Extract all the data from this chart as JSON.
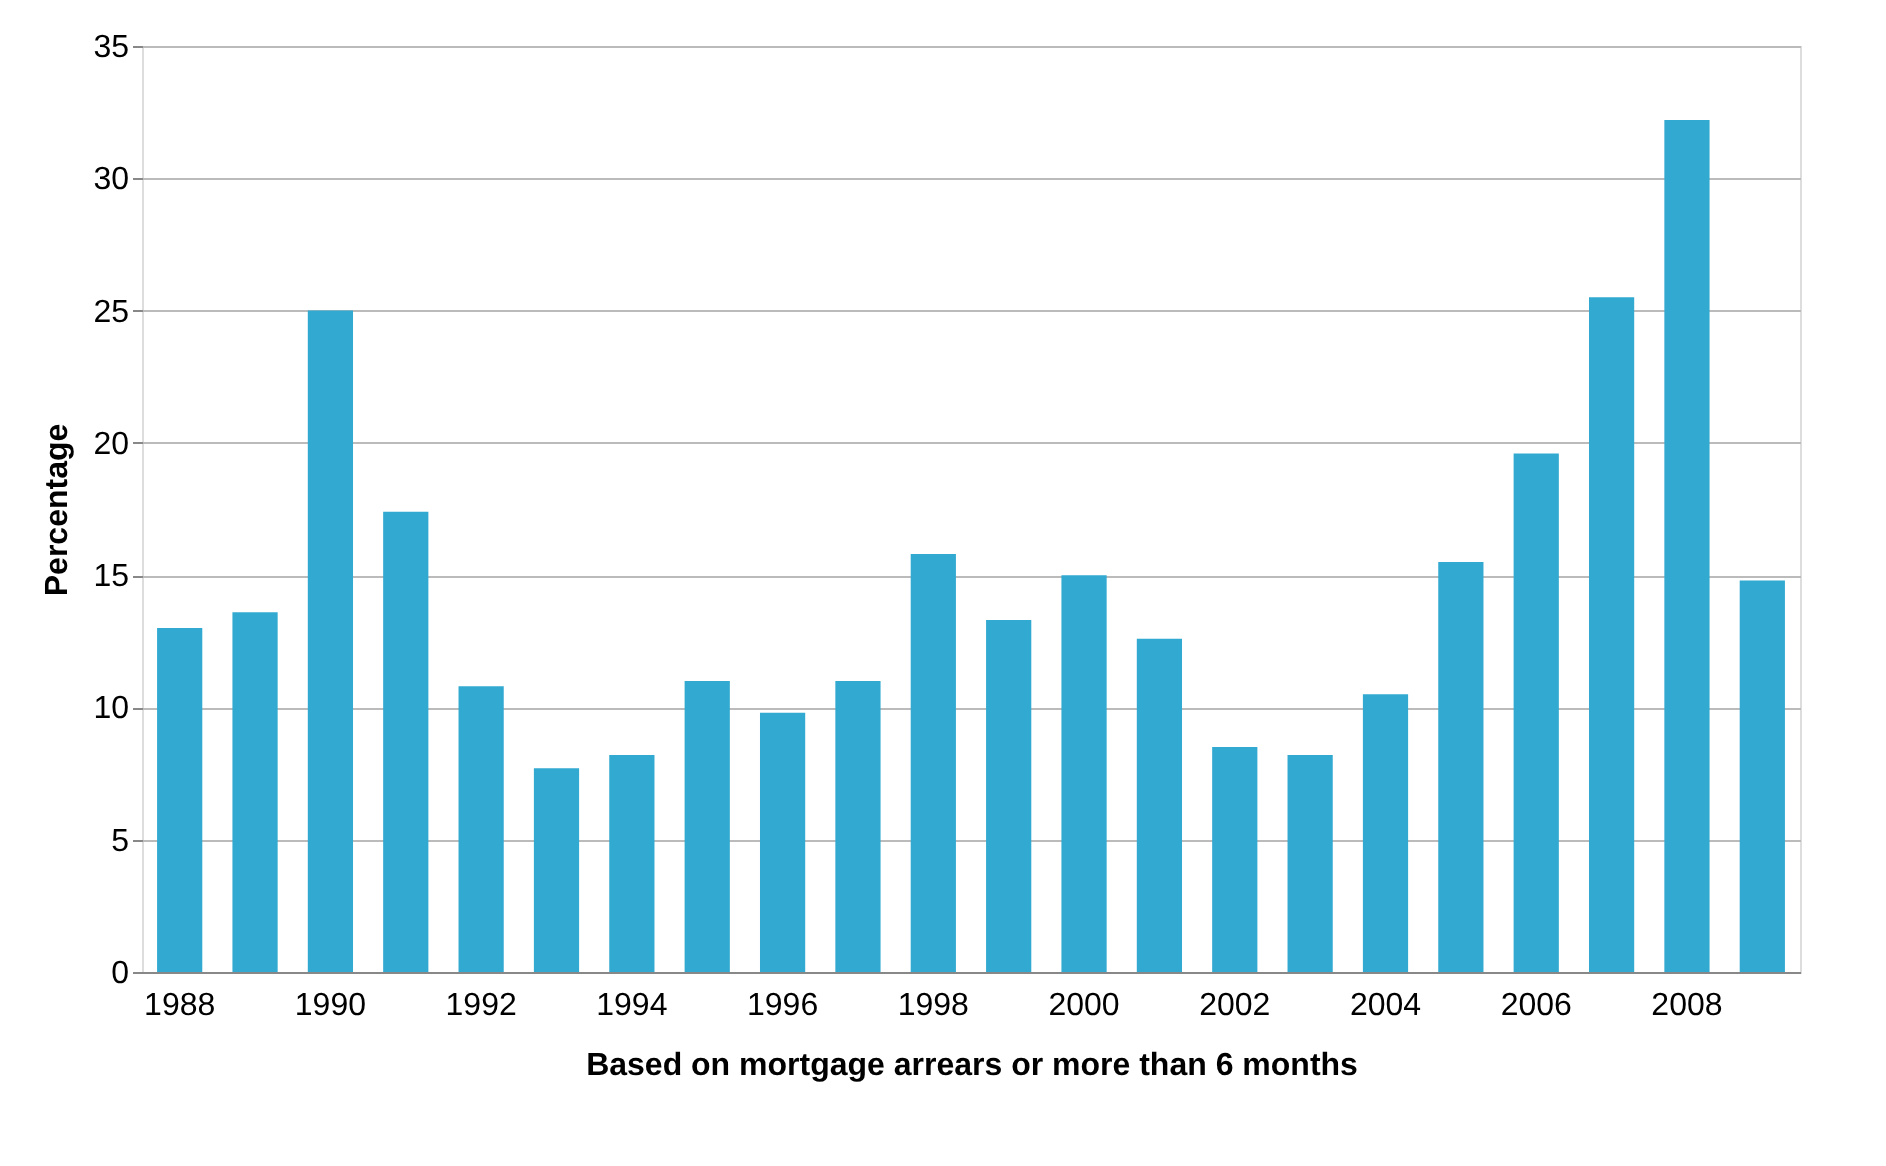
{
  "chart_data": {
    "type": "bar",
    "xlabel": "Based on mortgage arrears or more than 6 months",
    "ylabel": "Percentage",
    "categories": [
      "1988",
      null,
      "1990",
      null,
      "1992",
      null,
      "1994",
      null,
      "1996",
      null,
      "1998",
      null,
      "2000",
      null,
      "2002",
      null,
      "2004",
      null,
      "2006",
      null,
      "2008",
      null
    ],
    "series": [
      {
        "color": "#31a9d0",
        "values": [
          13,
          13.6,
          25,
          17.4,
          10.8,
          7.7,
          8.2,
          11,
          9.8,
          11,
          15.8,
          13.3,
          15,
          12.6,
          8.5,
          8.2,
          10.5,
          15.5,
          19.6,
          25.5,
          32.2,
          14.8
        ]
      }
    ],
    "ylim": [
      0,
      35
    ],
    "yticks": [
      0,
      5,
      10,
      15,
      20,
      25,
      30,
      35
    ],
    "grid": "y"
  }
}
